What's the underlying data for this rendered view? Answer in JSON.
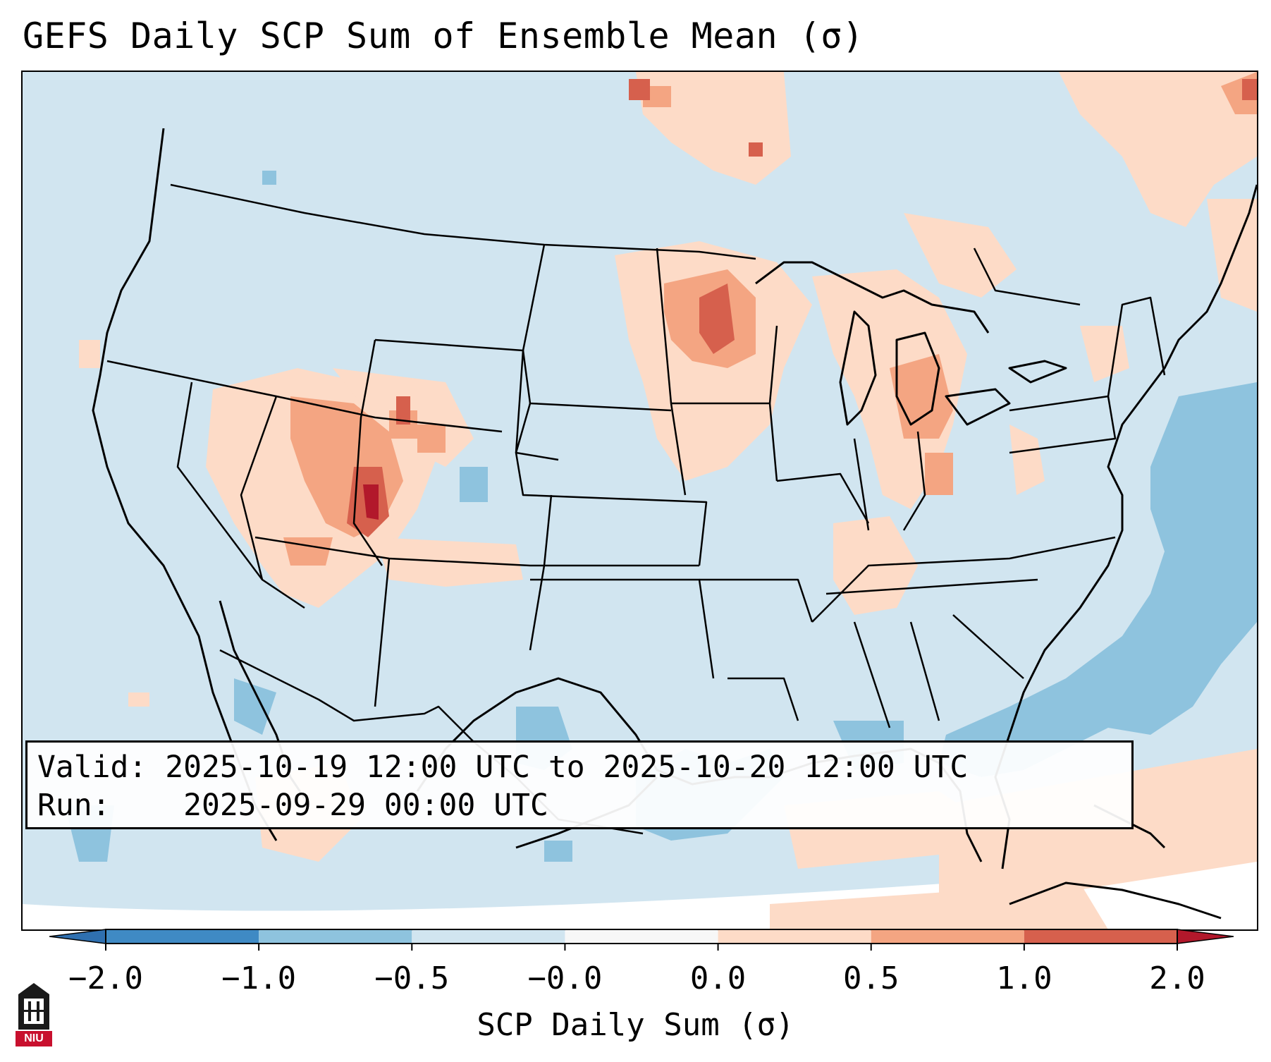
{
  "title": "GEFS Daily SCP Sum of Ensemble Mean (σ)",
  "info": {
    "valid_label": "Valid:",
    "valid_value": "2025-10-19 12:00 UTC to 2025-10-20 12:00 UTC",
    "run_label": "Run:",
    "run_value": "2025-09-29 00:00 UTC"
  },
  "colorbar": {
    "label": "SCP Daily Sum (σ)",
    "ticks": [
      "−2.0",
      "−1.0",
      "−0.5",
      "−0.0",
      "0.0",
      "0.5",
      "1.0",
      "2.0"
    ],
    "colors": [
      "#3a84c0",
      "#8ec3de",
      "#d1e5f0",
      "#f7f7f7",
      "#fddbc7",
      "#f4a582",
      "#d6604d",
      "#b2182b"
    ]
  },
  "logo": {
    "text": "NIU",
    "icon": "niu-tower-logo-icon"
  },
  "map": {
    "ocean_color": "#d1e5f0",
    "land_color": "#d1e5f0",
    "line_color": "#000000"
  }
}
